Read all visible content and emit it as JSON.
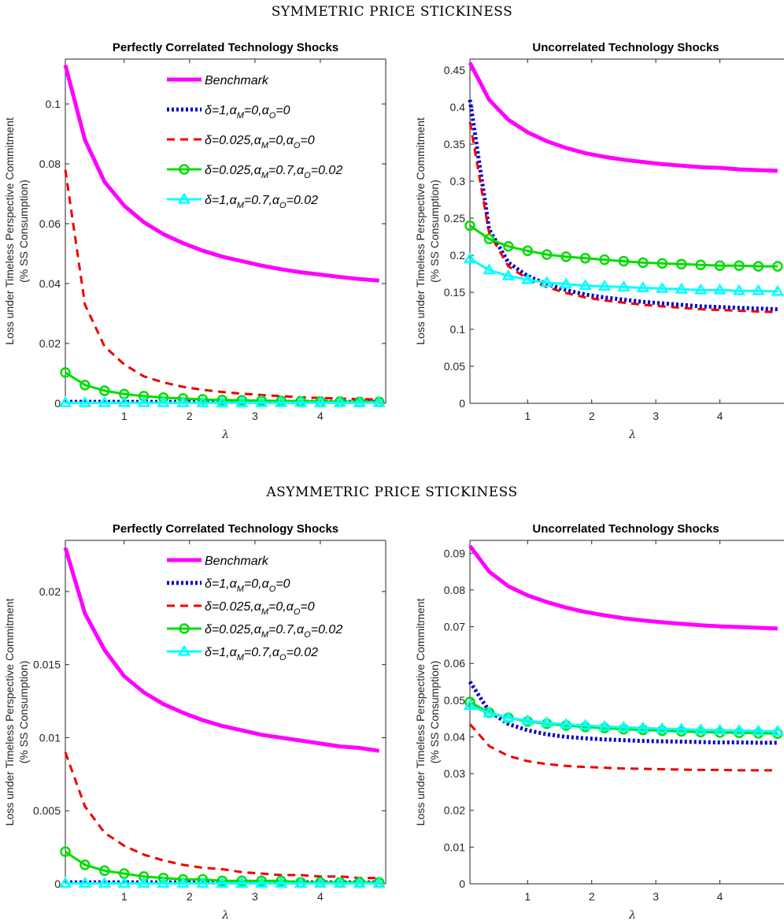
{
  "sections": [
    {
      "title": "SYMMETRIC PRICE STICKINESS"
    },
    {
      "title": "ASYMMETRIC PRICE STICKINESS"
    }
  ],
  "legend": [
    {
      "delta": "",
      "aM": "",
      "aO": "",
      "text": "Benchmark"
    },
    {
      "delta": "1",
      "aM": "0",
      "aO": "0"
    },
    {
      "delta": "0.025",
      "aM": "0",
      "aO": "0"
    },
    {
      "delta": "0.025",
      "aM": "0.7",
      "aO": "0.02"
    },
    {
      "delta": "1",
      "aM": "0.7",
      "aO": "0.02"
    }
  ],
  "legend_symbols": {
    "delta": "δ",
    "alpha": "α",
    "sub_M": "M",
    "sub_O": "O"
  },
  "series_styles": [
    {
      "color": "#ff00ff",
      "dash": "",
      "marker": "none",
      "width": 5
    },
    {
      "color": "#0000cc",
      "dash": "3,3",
      "marker": "none",
      "width": 5
    },
    {
      "color": "#ee0000",
      "dash": "10,7",
      "marker": "none",
      "width": 3
    },
    {
      "color": "#00dd00",
      "dash": "",
      "marker": "circle",
      "width": 3
    },
    {
      "color": "#00ffff",
      "dash": "",
      "marker": "triangle",
      "width": 3
    }
  ],
  "chart_data": [
    {
      "type": "line",
      "title": "Perfectly Correlated Technology Shocks",
      "xlabel": "λ",
      "ylabel": [
        "Loss under Timeless Perspective Commitment",
        "(% SS Consumption)"
      ],
      "xlim": [
        0.1,
        5
      ],
      "ylim": [
        0,
        0.115
      ],
      "xticks": [
        "1",
        "2",
        "3",
        "4"
      ],
      "yticks": [
        "0",
        "0.02",
        "0.04",
        "0.06",
        "0.08",
        "0.1"
      ],
      "x": [
        0.1,
        0.4,
        0.7,
        1.0,
        1.3,
        1.6,
        1.9,
        2.2,
        2.5,
        2.8,
        3.1,
        3.4,
        3.7,
        4.0,
        4.3,
        4.6,
        4.9
      ],
      "series": [
        {
          "values": [
            0.113,
            0.088,
            0.074,
            0.066,
            0.0605,
            0.0565,
            0.0535,
            0.051,
            0.049,
            0.0475,
            0.046,
            0.0448,
            0.0438,
            0.043,
            0.0422,
            0.0415,
            0.041
          ]
        },
        {
          "values": [
            0.0005,
            0.0005,
            0.0005,
            0.0005,
            0.0005,
            0.0005,
            0.0005,
            0.0005,
            0.0005,
            0.0005,
            0.0005,
            0.0005,
            0.0005,
            0.0005,
            0.0005,
            0.0005,
            0.0005
          ]
        },
        {
          "values": [
            0.078,
            0.033,
            0.019,
            0.013,
            0.009,
            0.007,
            0.0055,
            0.0045,
            0.0038,
            0.0032,
            0.0028,
            0.0024,
            0.002,
            0.0018,
            0.0016,
            0.0014,
            0.0013
          ]
        },
        {
          "values": [
            0.0103,
            0.0061,
            0.0042,
            0.0031,
            0.0024,
            0.0019,
            0.0016,
            0.0013,
            0.0011,
            0.001,
            0.0009,
            0.0008,
            0.0007,
            0.0006,
            0.0006,
            0.0005,
            0.0005
          ]
        },
        {
          "values": [
            0.0002,
            0.0002,
            0.0002,
            0.0002,
            0.0002,
            0.0002,
            0.0002,
            0.0002,
            0.0002,
            0.0002,
            0.0002,
            0.0002,
            0.0002,
            0.0002,
            0.0002,
            0.0002,
            0.0002
          ]
        }
      ]
    },
    {
      "type": "line",
      "title": "Uncorrelated Technology Shocks",
      "xlabel": "λ",
      "ylabel": [
        "Loss under Timeless Perspective Commitment",
        "(% SS Consumption)"
      ],
      "xlim": [
        0.1,
        5
      ],
      "ylim": [
        0,
        0.465
      ],
      "xticks": [
        "1",
        "2",
        "3",
        "4"
      ],
      "yticks": [
        "0",
        "0.05",
        "0.1",
        "0.15",
        "0.2",
        "0.25",
        "0.3",
        "0.35",
        "0.4",
        "0.45"
      ],
      "x": [
        0.1,
        0.4,
        0.7,
        1.0,
        1.3,
        1.6,
        1.9,
        2.2,
        2.5,
        2.8,
        3.1,
        3.4,
        3.7,
        4.0,
        4.3,
        4.6,
        4.9
      ],
      "series": [
        {
          "values": [
            0.46,
            0.41,
            0.383,
            0.366,
            0.354,
            0.345,
            0.338,
            0.333,
            0.329,
            0.326,
            0.323,
            0.321,
            0.319,
            0.318,
            0.316,
            0.315,
            0.314
          ]
        },
        {
          "values": [
            0.41,
            0.235,
            0.19,
            0.172,
            0.161,
            0.153,
            0.147,
            0.143,
            0.14,
            0.137,
            0.135,
            0.133,
            0.131,
            0.13,
            0.129,
            0.128,
            0.127
          ]
        },
        {
          "values": [
            0.38,
            0.23,
            0.185,
            0.168,
            0.157,
            0.149,
            0.143,
            0.139,
            0.136,
            0.133,
            0.131,
            0.129,
            0.127,
            0.126,
            0.125,
            0.124,
            0.123
          ]
        },
        {
          "values": [
            0.24,
            0.222,
            0.212,
            0.206,
            0.201,
            0.198,
            0.196,
            0.194,
            0.192,
            0.19,
            0.189,
            0.188,
            0.187,
            0.186,
            0.186,
            0.185,
            0.185
          ]
        },
        {
          "values": [
            0.195,
            0.18,
            0.172,
            0.167,
            0.163,
            0.161,
            0.159,
            0.158,
            0.157,
            0.156,
            0.155,
            0.154,
            0.153,
            0.153,
            0.152,
            0.152,
            0.151
          ]
        }
      ]
    },
    {
      "type": "line",
      "title": "Perfectly Correlated Technology Shocks",
      "xlabel": "λ",
      "ylabel": [
        "Loss under Timeless Perspective Commitment",
        "(% SS Consumption)"
      ],
      "xlim": [
        0.1,
        5
      ],
      "ylim": [
        0,
        0.0235
      ],
      "xticks": [
        "1",
        "2",
        "3",
        "4"
      ],
      "yticks": [
        "0",
        "0.005",
        "0.01",
        "0.015",
        "0.02"
      ],
      "x": [
        0.1,
        0.4,
        0.7,
        1.0,
        1.3,
        1.6,
        1.9,
        2.2,
        2.5,
        2.8,
        3.1,
        3.4,
        3.7,
        4.0,
        4.3,
        4.6,
        4.9
      ],
      "series": [
        {
          "values": [
            0.023,
            0.0185,
            0.016,
            0.0142,
            0.0131,
            0.0123,
            0.0117,
            0.0112,
            0.0108,
            0.0105,
            0.0102,
            0.01,
            0.0098,
            0.0096,
            0.0094,
            0.0093,
            0.0091
          ]
        },
        {
          "values": [
            0.0001,
            0.0001,
            0.0001,
            0.0001,
            0.0001,
            0.0001,
            0.0001,
            0.0001,
            0.0001,
            0.0001,
            0.0001,
            0.0001,
            0.0001,
            0.0001,
            0.0001,
            0.0001,
            0.0001
          ]
        },
        {
          "values": [
            0.009,
            0.0053,
            0.0035,
            0.0026,
            0.002,
            0.0016,
            0.0013,
            0.0011,
            0.001,
            0.0008,
            0.0007,
            0.0006,
            0.0006,
            0.0005,
            0.0005,
            0.0004,
            0.0004
          ]
        },
        {
          "values": [
            0.0022,
            0.0013,
            0.0009,
            0.0007,
            0.0005,
            0.0004,
            0.0003,
            0.0003,
            0.0002,
            0.0002,
            0.0002,
            0.0002,
            0.0001,
            0.0001,
            0.0001,
            0.0001,
            0.0001
          ]
        },
        {
          "values": [
            3e-05,
            3e-05,
            3e-05,
            3e-05,
            3e-05,
            3e-05,
            3e-05,
            3e-05,
            3e-05,
            3e-05,
            3e-05,
            3e-05,
            3e-05,
            3e-05,
            3e-05,
            3e-05,
            3e-05
          ]
        }
      ]
    },
    {
      "type": "line",
      "title": "Uncorrelated Technology Shocks",
      "xlabel": "λ",
      "ylabel": [
        "Loss under Timeless Perspective Commitment",
        "(% SS Consumption)"
      ],
      "xlim": [
        0.1,
        5
      ],
      "ylim": [
        0,
        0.0935
      ],
      "xticks": [
        "1",
        "2",
        "3",
        "4"
      ],
      "yticks": [
        "0",
        "0.01",
        "0.02",
        "0.03",
        "0.04",
        "0.05",
        "0.06",
        "0.07",
        "0.08",
        "0.09"
      ],
      "x": [
        0.1,
        0.4,
        0.7,
        1.0,
        1.3,
        1.6,
        1.9,
        2.2,
        2.5,
        2.8,
        3.1,
        3.4,
        3.7,
        4.0,
        4.3,
        4.6,
        4.9
      ],
      "series": [
        {
          "values": [
            0.092,
            0.085,
            0.081,
            0.0785,
            0.0767,
            0.0752,
            0.074,
            0.0731,
            0.0723,
            0.0717,
            0.0712,
            0.0708,
            0.0704,
            0.0701,
            0.0699,
            0.0697,
            0.0695
          ]
        },
        {
          "values": [
            0.055,
            0.047,
            0.0435,
            0.0418,
            0.0407,
            0.04,
            0.0396,
            0.0393,
            0.0391,
            0.0389,
            0.0388,
            0.0387,
            0.0386,
            0.0385,
            0.0385,
            0.0384,
            0.0384
          ]
        },
        {
          "values": [
            0.0435,
            0.0375,
            0.0348,
            0.0334,
            0.0326,
            0.0321,
            0.0318,
            0.0316,
            0.0314,
            0.0313,
            0.0312,
            0.0311,
            0.031,
            0.031,
            0.0309,
            0.0309,
            0.0309
          ]
        },
        {
          "values": [
            0.0495,
            0.0466,
            0.0452,
            0.0442,
            0.0436,
            0.0431,
            0.0427,
            0.0424,
            0.0421,
            0.0419,
            0.0417,
            0.0415,
            0.0413,
            0.0412,
            0.0411,
            0.041,
            0.0409
          ]
        },
        {
          "values": [
            0.0485,
            0.0465,
            0.0452,
            0.0444,
            0.0438,
            0.0434,
            0.0431,
            0.0428,
            0.0426,
            0.0424,
            0.0422,
            0.0421,
            0.0419,
            0.0418,
            0.0417,
            0.0416,
            0.0415
          ]
        }
      ]
    }
  ]
}
